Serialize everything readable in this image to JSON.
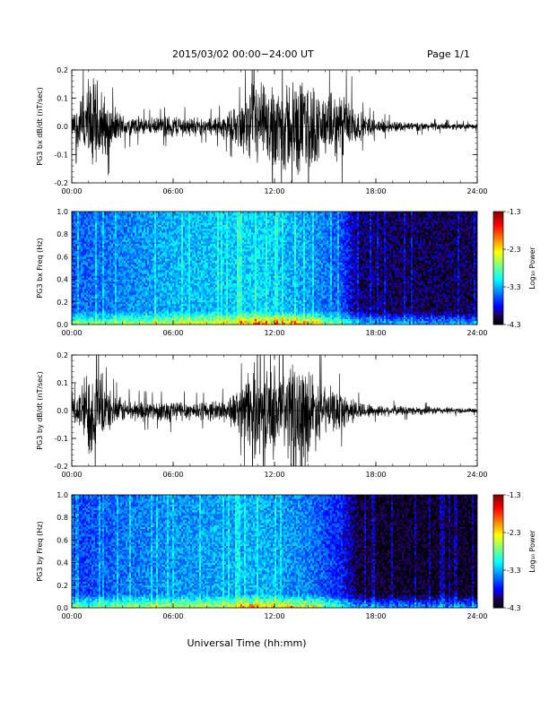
{
  "header": {
    "title": "2015/03/02  00:00−24:00 UT",
    "page": "Page 1/1"
  },
  "xlabel": "Universal Time (hh:mm)",
  "colorbar": {
    "label": "Log₁₀ Power",
    "ticks": [
      "-1.3",
      "-2.3",
      "-3.3",
      "-4.3"
    ]
  },
  "chart_data": [
    {
      "type": "line",
      "ylabel": "PG3 bx dB/dt (nT/sec)",
      "ylim": [
        -0.2,
        0.2
      ],
      "yticks": [
        "0.2",
        "0.1",
        "0.0",
        "-0.1",
        "-0.2"
      ],
      "xticks": [
        "00:00",
        "06:00",
        "12:00",
        "18:00",
        "24:00"
      ],
      "envelope": {
        "hours": [
          0,
          0.5,
          1,
          1.5,
          2,
          2.5,
          3,
          4,
          5,
          6,
          7,
          8,
          9,
          10,
          10.5,
          11,
          11.5,
          12,
          12.5,
          13,
          13.5,
          14,
          15,
          16,
          16.5,
          17,
          18,
          20,
          22,
          24
        ],
        "amplitude": [
          0.04,
          0.12,
          0.2,
          0.2,
          0.12,
          0.08,
          0.05,
          0.04,
          0.035,
          0.05,
          0.04,
          0.035,
          0.05,
          0.09,
          0.16,
          0.2,
          0.15,
          0.2,
          0.2,
          0.2,
          0.2,
          0.2,
          0.12,
          0.15,
          0.12,
          0.06,
          0.03,
          0.02,
          0.015,
          0.01
        ]
      }
    },
    {
      "type": "heatmap",
      "ylabel": "PG3 bx Freq (Hz)",
      "ylim": [
        0.0,
        1.0
      ],
      "yticks": [
        "1.0",
        "0.8",
        "0.6",
        "0.4",
        "0.2",
        "0.0"
      ],
      "xticks": [
        "00:00",
        "06:00",
        "12:00",
        "18:00",
        "24:00"
      ],
      "color_range": [
        -4.3,
        -1.3
      ],
      "background_power": {
        "hours": [
          0,
          3,
          6,
          9,
          11,
          12,
          14,
          16,
          17,
          20,
          24
        ],
        "log_power": [
          -3.55,
          -3.45,
          -3.3,
          -3.25,
          -3.2,
          -3.25,
          -3.35,
          -3.6,
          -4.05,
          -4.1,
          -4.1
        ]
      }
    },
    {
      "type": "line",
      "ylabel": "PG3 by dB/dt (nT/sec)",
      "ylim": [
        -0.2,
        0.2
      ],
      "yticks": [
        "0.2",
        "0.1",
        "0.0",
        "-0.1",
        "-0.2"
      ],
      "xticks": [
        "00:00",
        "06:00",
        "12:00",
        "18:00",
        "24:00"
      ],
      "envelope": {
        "hours": [
          0,
          0.5,
          1,
          1.5,
          2,
          2.5,
          3,
          4,
          5,
          6,
          7,
          8,
          9,
          10,
          10.5,
          11,
          11.5,
          12,
          12.5,
          13,
          13.5,
          14,
          15,
          16,
          16.5,
          17,
          18,
          20,
          22,
          24
        ],
        "amplitude": [
          0.04,
          0.1,
          0.2,
          0.2,
          0.1,
          0.07,
          0.05,
          0.045,
          0.04,
          0.05,
          0.04,
          0.04,
          0.05,
          0.1,
          0.18,
          0.2,
          0.16,
          0.2,
          0.2,
          0.2,
          0.2,
          0.2,
          0.1,
          0.08,
          0.06,
          0.04,
          0.025,
          0.02,
          0.015,
          0.01
        ]
      }
    },
    {
      "type": "heatmap",
      "ylabel": "PG3 by Freq (Hz)",
      "ylim": [
        0.0,
        1.0
      ],
      "yticks": [
        "1.0",
        "0.8",
        "0.6",
        "0.4",
        "0.2",
        "0.0"
      ],
      "xticks": [
        "00:00",
        "06:00",
        "12:00",
        "18:00",
        "24:00"
      ],
      "color_range": [
        -4.3,
        -1.3
      ],
      "background_power": {
        "hours": [
          0,
          3,
          6,
          9,
          11,
          12,
          14,
          16,
          17,
          20,
          24
        ],
        "log_power": [
          -3.65,
          -3.5,
          -3.4,
          -3.35,
          -3.3,
          -3.35,
          -3.45,
          -3.75,
          -4.15,
          -4.2,
          -4.2
        ]
      }
    }
  ]
}
